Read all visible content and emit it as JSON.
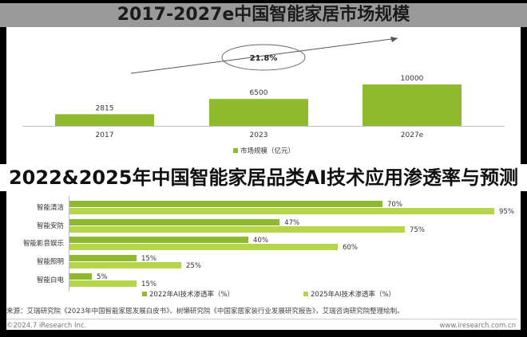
{
  "top_title": "2017-2027e中国智能家居市场规模",
  "mid_title": "2022&2025年中国智能家居品类AI技术应用渗透率与预测",
  "source": "来源：艾瑞研究院《2023年中国智能家居发展白皮书》、树懒研究院《中国家居家装行业发展研究报告》，艾瑞咨询研究院整理绘制。",
  "copyright": "©2024.7 iResearch Inc.",
  "site": "www.iresearch.com.cn",
  "colors": {
    "bar_dark": "#8fba2e",
    "bar_light": "#b5d64a",
    "arrow": "#555555"
  },
  "chart_data": [
    {
      "type": "bar",
      "categories": [
        "2017",
        "2023",
        "2027e"
      ],
      "series": [
        {
          "name": "市场规模（亿元）",
          "values": [
            2815,
            6500,
            10000
          ]
        }
      ],
      "data_labels": [
        "2815",
        "6500",
        "10000"
      ],
      "annotation": "21.8%",
      "legend": "bottom"
    },
    {
      "type": "bar",
      "orientation": "horizontal",
      "categories": [
        "智能清洁",
        "智能安防",
        "智能影音娱乐",
        "智能照明",
        "智能白电"
      ],
      "series": [
        {
          "name": "2022年AI技术渗透率（%）",
          "values": [
            70,
            47,
            40,
            15,
            5
          ],
          "labels": [
            "70%",
            "47%",
            "40%",
            "15%",
            "5%"
          ]
        },
        {
          "name": "2025年AI技术渗透率（%）",
          "values": [
            95,
            75,
            60,
            25,
            15
          ],
          "labels": [
            "95%",
            "75%",
            "60%",
            "25%",
            "15%"
          ]
        }
      ],
      "legend": "bottom"
    }
  ]
}
